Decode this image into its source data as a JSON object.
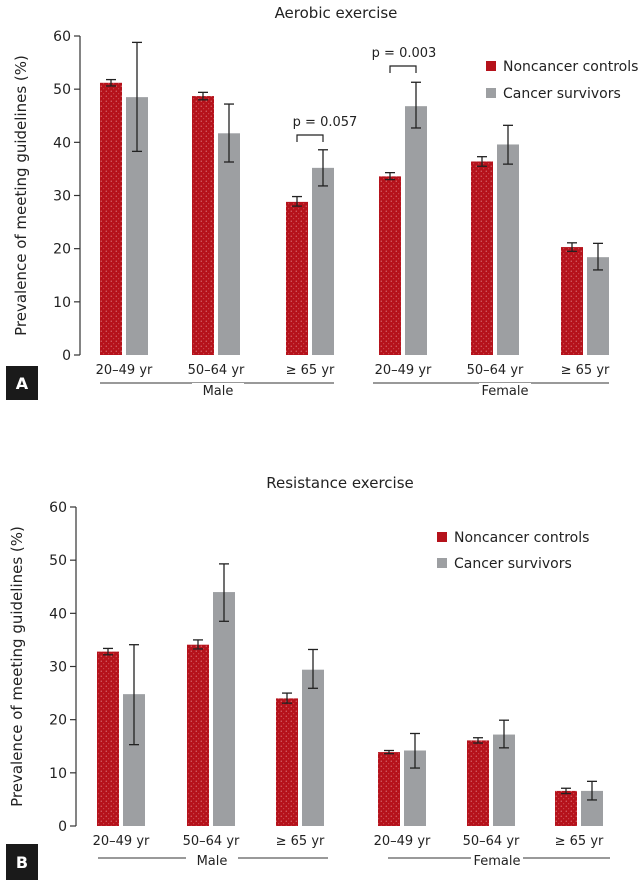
{
  "colors": {
    "noncancer": "#b5121b",
    "cancer": "#9d9fa2",
    "axis": "#333333"
  },
  "chart_data": [
    {
      "panel": "A",
      "type": "bar",
      "title": "Aerobic exercise",
      "ylabel": "Prevalence of meeting guidelines (%)",
      "ylim": [
        0,
        60
      ],
      "yticks": [
        0,
        10,
        20,
        30,
        40,
        50,
        60
      ],
      "categories": [
        "20–49 yr",
        "50–64 yr",
        "≥ 65 yr",
        "20–49 yr",
        "50–64 yr",
        "≥ 65 yr"
      ],
      "groups": [
        {
          "label": "Male",
          "categories": [
            0,
            1,
            2
          ]
        },
        {
          "label": "Female",
          "categories": [
            3,
            4,
            5
          ]
        }
      ],
      "legend_position": "top-right",
      "series": [
        {
          "name": "Noncancer controls",
          "values": [
            51.2,
            48.7,
            28.8,
            33.6,
            36.4,
            20.3
          ],
          "err_low": [
            50.6,
            48.0,
            28.0,
            33.0,
            35.5,
            19.5
          ],
          "err_high": [
            51.8,
            49.4,
            29.8,
            34.3,
            37.3,
            21.1
          ]
        },
        {
          "name": "Cancer survivors",
          "values": [
            48.5,
            41.7,
            35.2,
            46.8,
            39.6,
            18.4
          ],
          "err_low": [
            38.3,
            36.3,
            31.8,
            42.7,
            35.9,
            16.0
          ],
          "err_high": [
            58.8,
            47.2,
            38.6,
            51.3,
            43.2,
            21.0
          ]
        }
      ],
      "annotations": [
        {
          "text": "p = 0.057",
          "category": 2
        },
        {
          "text": "p = 0.003",
          "category": 3
        }
      ]
    },
    {
      "panel": "B",
      "type": "bar",
      "title": "Resistance exercise",
      "ylabel": "Prevalence of meeting guidelines (%)",
      "ylim": [
        0,
        60
      ],
      "yticks": [
        0,
        10,
        20,
        30,
        40,
        50,
        60
      ],
      "categories": [
        "20–49 yr",
        "50–64 yr",
        "≥ 65 yr",
        "20–49 yr",
        "50–64 yr",
        "≥ 65 yr"
      ],
      "groups": [
        {
          "label": "Male",
          "categories": [
            0,
            1,
            2
          ]
        },
        {
          "label": "Female",
          "categories": [
            3,
            4,
            5
          ]
        }
      ],
      "legend_position": "top-right",
      "series": [
        {
          "name": "Noncancer controls",
          "values": [
            32.8,
            34.1,
            24.0,
            13.9,
            16.1,
            6.6
          ],
          "err_low": [
            32.2,
            33.3,
            23.1,
            13.6,
            15.6,
            6.1
          ],
          "err_high": [
            33.4,
            35.0,
            25.0,
            14.2,
            16.6,
            7.1
          ]
        },
        {
          "name": "Cancer survivors",
          "values": [
            24.8,
            44.0,
            29.4,
            14.2,
            17.2,
            6.6
          ],
          "err_low": [
            15.3,
            38.5,
            25.9,
            10.9,
            14.7,
            4.9
          ],
          "err_high": [
            34.1,
            49.3,
            33.2,
            17.4,
            19.9,
            8.4
          ]
        }
      ],
      "annotations": []
    }
  ]
}
